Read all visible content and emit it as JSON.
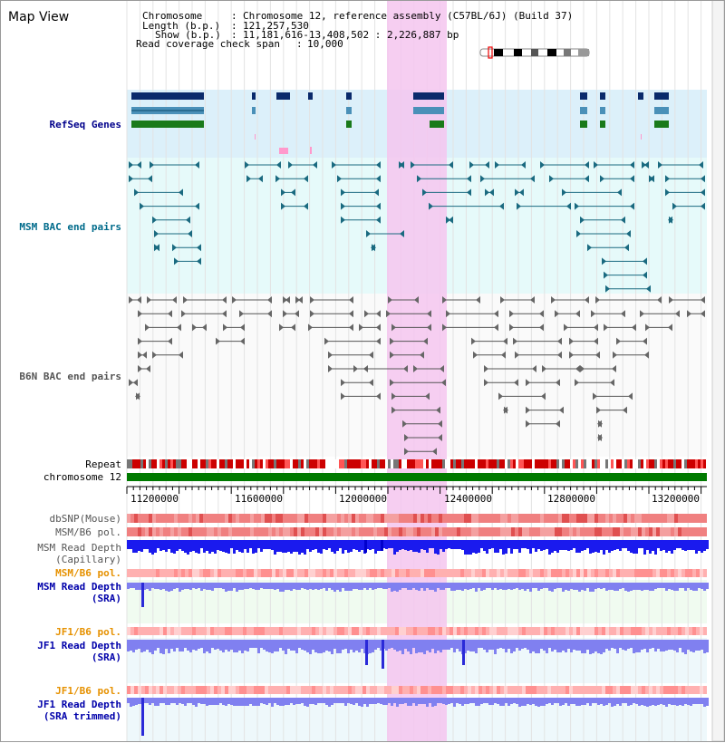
{
  "view_title": "Map View",
  "info": {
    "chromosome_label": "Chromosome",
    "chromosome_value": "Chromosome 12, reference assembly (C57BL/6J) (Build 37)",
    "length_label": "Length (b.p.)",
    "length_value": "121,257,530",
    "show_label": "Show (b.p.)",
    "show_value": "11,181,616-13,408,502 : 2,226,887 bp",
    "coverage_label": "Read coverage check span",
    "coverage_value": "10,000"
  },
  "tracks": {
    "refseq": "RefSeq Genes",
    "msm_bac": "MSM BAC end pairs",
    "b6n_bac": "B6N BAC end pairs",
    "repeat": "Repeat",
    "chromosome": "chromosome 12",
    "dbsnp": "dbSNP(Mouse)",
    "msm_b6_pol_1": "MSM/B6 pol.",
    "msm_depth_cap_1": "MSM Read Depth",
    "msm_depth_cap_2": "(Capillary)",
    "msm_b6_pol_2": "MSM/B6 pol.",
    "msm_depth_sra_1": "MSM Read Depth",
    "msm_depth_sra_2": "(SRA)",
    "jf1_b6_pol_1": "JF1/B6 pol.",
    "jf1_depth_sra_1": "JF1 Read Depth",
    "jf1_depth_sra_2": "(SRA)",
    "jf1_b6_pol_2": "JF1/B6 pol.",
    "jf1_depth_trim_1": "JF1 Read Depth",
    "jf1_depth_trim_2": "(SRA trimmed)"
  },
  "axis_ticks": [
    "11200000",
    "11600000",
    "12000000",
    "12400000",
    "12800000",
    "13200000"
  ],
  "colors": {
    "refseq_label": "#00008b",
    "msm_label": "#006b8b",
    "b6n_label": "#555555",
    "orange_label": "#e69100",
    "blue_label": "#0000aa",
    "highlight": "#f5c6ee",
    "refseq_bg": "#dcf0fa",
    "msm_bg": "#e6fafa"
  }
}
